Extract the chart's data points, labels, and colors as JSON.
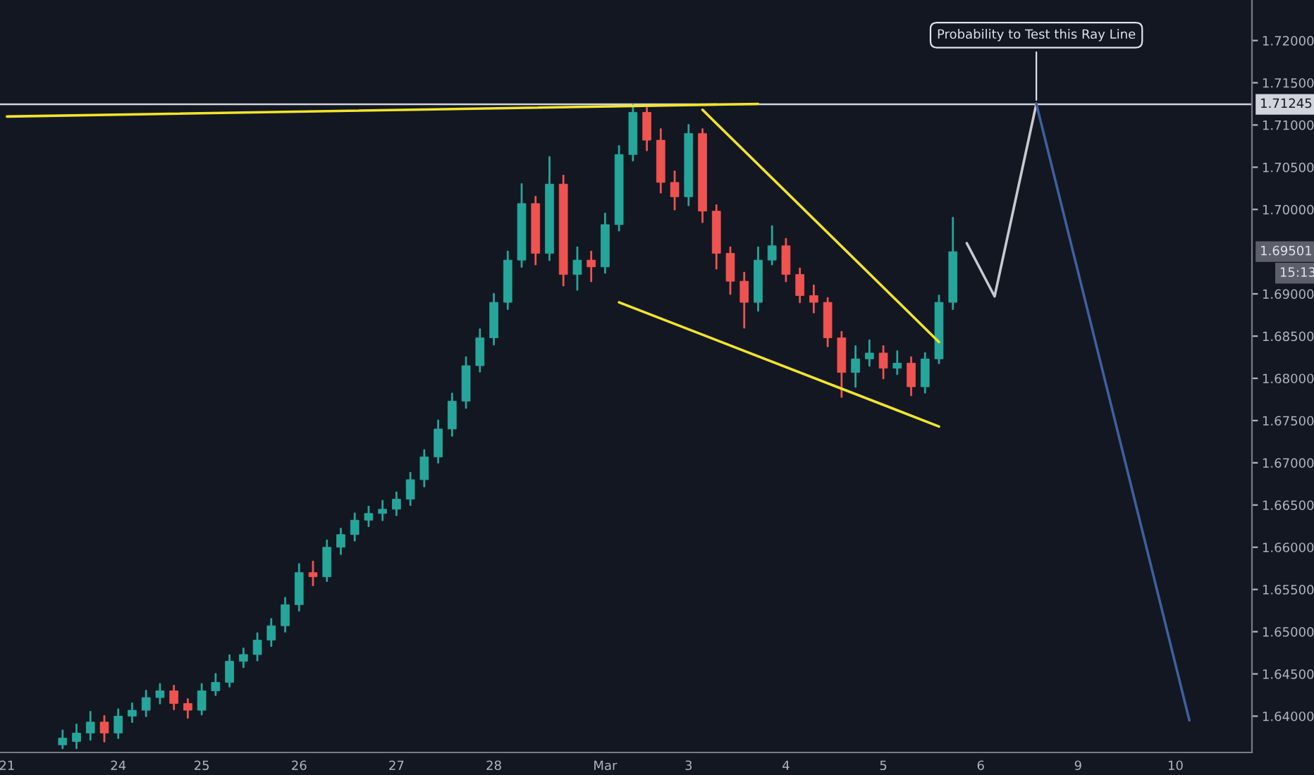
{
  "chart_data": {
    "type": "candlestick",
    "categories": [
      "21",
      null,
      null,
      null,
      null,
      null,
      null,
      null,
      "24",
      null,
      null,
      null,
      null,
      null,
      "25",
      null,
      null,
      null,
      null,
      null,
      null,
      "26",
      null,
      null,
      null,
      null,
      null,
      null,
      "27",
      null,
      null,
      null,
      null,
      null,
      null,
      "28",
      null,
      null,
      null,
      null,
      null,
      null,
      null,
      "Mar",
      null,
      null,
      null,
      null,
      null,
      "3",
      null,
      null,
      null,
      null,
      null,
      null,
      "4",
      null,
      null,
      null,
      null,
      null,
      null,
      "5",
      null,
      null,
      null,
      null,
      null,
      null,
      "6",
      null,
      null,
      null,
      null,
      null,
      null,
      "9",
      null,
      null,
      null,
      null,
      null,
      null,
      "10",
      null,
      null,
      null,
      null,
      null
    ],
    "ohlc": [
      null,
      null,
      null,
      null,
      [
        1.6366,
        1.6383,
        1.6362,
        1.6374
      ],
      [
        1.637,
        1.639,
        1.6362,
        1.638
      ],
      [
        1.638,
        1.6405,
        1.6372,
        1.6393
      ],
      [
        1.6393,
        1.64,
        1.637,
        1.638
      ],
      [
        1.638,
        1.6408,
        1.6374,
        1.64
      ],
      [
        1.64,
        1.6415,
        1.6393,
        1.6407
      ],
      [
        1.6407,
        1.643,
        1.64,
        1.6422
      ],
      [
        1.6422,
        1.6438,
        1.6415,
        1.643
      ],
      [
        1.643,
        1.6436,
        1.6408,
        1.6415
      ],
      [
        1.6415,
        1.642,
        1.6398,
        1.6407
      ],
      [
        1.6407,
        1.6438,
        1.6402,
        1.643
      ],
      [
        1.643,
        1.645,
        1.6425,
        1.644
      ],
      [
        1.644,
        1.6472,
        1.6435,
        1.6465
      ],
      [
        1.6465,
        1.648,
        1.6458,
        1.6473
      ],
      [
        1.6473,
        1.6498,
        1.6466,
        1.649
      ],
      [
        1.649,
        1.6515,
        1.6483,
        1.6507
      ],
      [
        1.6507,
        1.654,
        1.65,
        1.6532
      ],
      [
        1.6532,
        1.658,
        1.6525,
        1.657
      ],
      [
        1.657,
        1.6583,
        1.6555,
        1.6565
      ],
      [
        1.6565,
        1.6608,
        1.656,
        1.66
      ],
      [
        1.66,
        1.6622,
        1.6592,
        1.6615
      ],
      [
        1.6615,
        1.664,
        1.6608,
        1.6632
      ],
      [
        1.6632,
        1.6648,
        1.6625,
        1.664
      ],
      [
        1.664,
        1.6655,
        1.6632,
        1.6645
      ],
      [
        1.6645,
        1.6665,
        1.6638,
        1.6657
      ],
      [
        1.6657,
        1.6688,
        1.665,
        1.668
      ],
      [
        1.668,
        1.6715,
        1.6672,
        1.6707
      ],
      [
        1.6707,
        1.675,
        1.67,
        1.674
      ],
      [
        1.674,
        1.6782,
        1.6732,
        1.6773
      ],
      [
        1.6773,
        1.6825,
        1.6765,
        1.6815
      ],
      [
        1.6815,
        1.6858,
        1.6808,
        1.6848
      ],
      [
        1.6848,
        1.69,
        1.684,
        1.689
      ],
      [
        1.689,
        1.695,
        1.6882,
        1.694
      ],
      [
        1.694,
        1.703,
        1.6932,
        1.7007
      ],
      [
        1.7007,
        1.7015,
        1.6935,
        1.6948
      ],
      [
        1.6948,
        1.7062,
        1.694,
        1.703
      ],
      [
        1.703,
        1.704,
        1.691,
        1.6923
      ],
      [
        1.6923,
        1.6955,
        1.6905,
        1.694
      ],
      [
        1.694,
        1.695,
        1.6915,
        1.6932
      ],
      [
        1.6932,
        1.6995,
        1.6925,
        1.6982
      ],
      [
        1.6982,
        1.7075,
        1.6975,
        1.7065
      ],
      [
        1.7065,
        1.7124,
        1.7058,
        1.7115
      ],
      [
        1.7115,
        1.712,
        1.707,
        1.7082
      ],
      [
        1.7082,
        1.7095,
        1.702,
        1.7032
      ],
      [
        1.7032,
        1.7045,
        1.7,
        1.7015
      ],
      [
        1.7015,
        1.71,
        1.7005,
        1.709
      ],
      [
        1.709,
        1.7095,
        1.6985,
        1.6998
      ],
      [
        1.6998,
        1.7005,
        1.693,
        1.6948
      ],
      [
        1.6948,
        1.6955,
        1.69,
        1.6915
      ],
      [
        1.6915,
        1.6925,
        1.686,
        1.689
      ],
      [
        1.689,
        1.6955,
        1.688,
        1.694
      ],
      [
        1.694,
        1.698,
        1.6935,
        1.6957
      ],
      [
        1.6957,
        1.6965,
        1.6915,
        1.6923
      ],
      [
        1.6923,
        1.693,
        1.689,
        1.6898
      ],
      [
        1.6898,
        1.691,
        1.6878,
        1.689
      ],
      [
        1.689,
        1.6895,
        1.6838,
        1.6848
      ],
      [
        1.6848,
        1.6855,
        1.6778,
        1.6807
      ],
      [
        1.6807,
        1.6838,
        1.679,
        1.6823
      ],
      [
        1.6823,
        1.6845,
        1.6815,
        1.683
      ],
      [
        1.683,
        1.6838,
        1.68,
        1.6812
      ],
      [
        1.6812,
        1.6832,
        1.6805,
        1.6818
      ],
      [
        1.6818,
        1.6825,
        1.678,
        1.679
      ],
      [
        1.679,
        1.683,
        1.6783,
        1.6823
      ],
      [
        1.6823,
        1.6898,
        1.6818,
        1.689
      ],
      [
        1.689,
        1.699,
        1.6882,
        1.695
      ],
      null,
      null,
      null,
      null,
      null,
      null,
      null,
      null,
      null,
      null,
      null,
      null,
      null,
      null,
      null,
      null,
      null,
      null,
      null,
      null,
      null
    ],
    "series": [
      {
        "type": "line",
        "color": "#f2e52a",
        "values": [
          1.711,
          null,
          null,
          null,
          null,
          null,
          null,
          null,
          null,
          null,
          null,
          null,
          null,
          null,
          null,
          null,
          null,
          null,
          null,
          null,
          null,
          null,
          null,
          null,
          null,
          null,
          null,
          null,
          null,
          null,
          null,
          null,
          null,
          null,
          null,
          null,
          null,
          null,
          null,
          null,
          null,
          null,
          null,
          null,
          null,
          null,
          null,
          null,
          null,
          null,
          null,
          null,
          null,
          null,
          1.7125,
          null,
          null,
          null,
          null,
          null,
          null,
          null,
          null,
          null,
          null,
          null,
          null,
          null,
          null,
          null,
          null,
          null,
          null,
          null,
          null,
          null,
          null,
          null,
          null,
          null,
          null,
          null,
          null,
          null,
          null,
          null,
          null,
          null,
          null,
          null
        ]
      },
      {
        "type": "line",
        "color": "#f2e52a",
        "values": [
          null,
          null,
          null,
          null,
          null,
          null,
          null,
          null,
          null,
          null,
          null,
          null,
          null,
          null,
          null,
          null,
          null,
          null,
          null,
          null,
          null,
          null,
          null,
          null,
          null,
          null,
          null,
          null,
          null,
          null,
          null,
          null,
          null,
          null,
          null,
          null,
          null,
          null,
          null,
          null,
          null,
          null,
          null,
          null,
          null,
          null,
          null,
          null,
          null,
          null,
          1.7118,
          null,
          null,
          null,
          null,
          null,
          null,
          null,
          null,
          null,
          null,
          null,
          null,
          null,
          null,
          null,
          null,
          1.6843,
          null,
          null,
          null,
          null,
          null,
          null,
          null,
          null,
          null,
          null,
          null,
          null,
          null,
          null,
          null,
          null,
          null,
          null,
          null,
          null,
          null,
          null
        ]
      },
      {
        "type": "line",
        "color": "#f2e52a",
        "values": [
          null,
          null,
          null,
          null,
          null,
          null,
          null,
          null,
          null,
          null,
          null,
          null,
          null,
          null,
          null,
          null,
          null,
          null,
          null,
          null,
          null,
          null,
          null,
          null,
          null,
          null,
          null,
          null,
          null,
          null,
          null,
          null,
          null,
          null,
          null,
          null,
          null,
          null,
          null,
          null,
          null,
          null,
          null,
          null,
          1.689,
          null,
          null,
          null,
          null,
          null,
          null,
          null,
          null,
          null,
          null,
          null,
          null,
          null,
          null,
          null,
          null,
          null,
          null,
          null,
          null,
          null,
          null,
          1.6743,
          null,
          null,
          null,
          null,
          null,
          null,
          null,
          null,
          null,
          null,
          null,
          null,
          null,
          null,
          null,
          null,
          null,
          null,
          null,
          null,
          null,
          null
        ]
      },
      {
        "type": "line",
        "color": "#c8cad0",
        "values": [
          null,
          null,
          null,
          null,
          null,
          null,
          null,
          null,
          null,
          null,
          null,
          null,
          null,
          null,
          null,
          null,
          null,
          null,
          null,
          null,
          null,
          null,
          null,
          null,
          null,
          null,
          null,
          null,
          null,
          null,
          null,
          null,
          null,
          null,
          null,
          null,
          null,
          null,
          null,
          null,
          null,
          null,
          null,
          null,
          null,
          null,
          null,
          null,
          null,
          null,
          null,
          null,
          null,
          null,
          null,
          null,
          null,
          null,
          null,
          null,
          null,
          null,
          null,
          null,
          null,
          null,
          null,
          null,
          null,
          1.696,
          null,
          1.6897,
          null,
          null,
          1.7125,
          null,
          null,
          null,
          null,
          null,
          null,
          null,
          null,
          null,
          null,
          null,
          null,
          null,
          null,
          null
        ]
      },
      {
        "type": "line",
        "color": "#3f5f9e",
        "values": [
          null,
          null,
          null,
          null,
          null,
          null,
          null,
          null,
          null,
          null,
          null,
          null,
          null,
          null,
          null,
          null,
          null,
          null,
          null,
          null,
          null,
          null,
          null,
          null,
          null,
          null,
          null,
          null,
          null,
          null,
          null,
          null,
          null,
          null,
          null,
          null,
          null,
          null,
          null,
          null,
          null,
          null,
          null,
          null,
          null,
          null,
          null,
          null,
          null,
          null,
          null,
          null,
          null,
          null,
          null,
          null,
          null,
          null,
          null,
          null,
          null,
          null,
          null,
          null,
          null,
          null,
          null,
          null,
          null,
          null,
          null,
          null,
          null,
          null,
          1.7125,
          null,
          null,
          null,
          null,
          null,
          null,
          null,
          null,
          null,
          null,
          1.6395,
          null,
          null,
          null,
          null
        ]
      }
    ],
    "ref_lines": [
      {
        "axis": "y",
        "value": 1.71245,
        "label": "1.71245",
        "color": "#d1d4dc"
      }
    ],
    "annotations": [
      {
        "text": "Probability to Test this Ray Line",
        "y": 1.7125
      },
      "1.69501",
      "15:13"
    ],
    "ylim": [
      1.6357,
      1.7248
    ],
    "yticks": [
      {
        "value": 1.64,
        "label": "1.64000"
      },
      {
        "value": 1.645,
        "label": "1.64500"
      },
      {
        "value": 1.65,
        "label": "1.65000"
      },
      {
        "value": 1.655,
        "label": "1.65500"
      },
      {
        "value": 1.66,
        "label": "1.66000"
      },
      {
        "value": 1.665,
        "label": "1.66500"
      },
      {
        "value": 1.67,
        "label": "1.67000"
      },
      {
        "value": 1.675,
        "label": "1.67500"
      },
      {
        "value": 1.68,
        "label": "1.68000"
      },
      {
        "value": 1.685,
        "label": "1.68500"
      },
      {
        "value": 1.69,
        "label": "1.69000"
      },
      {
        "value": 1.7,
        "label": "1.70000"
      },
      {
        "value": 1.705,
        "label": "1.70500"
      },
      {
        "value": 1.71,
        "label": "1.71000"
      },
      {
        "value": 1.715,
        "label": "1.71500"
      },
      {
        "value": 1.72,
        "label": "1.72000"
      }
    ]
  }
}
